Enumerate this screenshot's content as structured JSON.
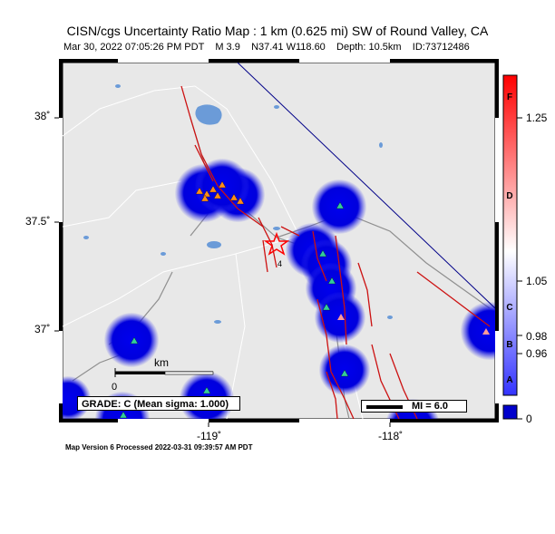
{
  "title": "CISN/cgs Uncertainty Ratio Map : 1 km (0.625 mi) SW of Round Valley, CA",
  "subtitle": "Mar 30, 2022 07:05:26 PM PDT    M 3.9    N37.41 W118.60    Depth: 10.5km    ID:73712486",
  "footer": "Map Version 6 Processed 2022-03-31 09:39:57 AM PDT",
  "axes": {
    "lat_ticks": [
      "38˚",
      "37.5˚",
      "37˚"
    ],
    "lon_ticks": [
      "-119˚",
      "-118˚"
    ]
  },
  "grade_label": "GRADE: C (Mean sigma: 1.000)",
  "mi_label": "MI = 6.0",
  "scale": {
    "unit": "km",
    "zero": "0"
  },
  "colorbar": {
    "value_labels": [
      "1.25",
      "1.05",
      "0.98",
      "0.96",
      "0"
    ],
    "grade_letters": [
      "F",
      "D",
      "C",
      "B",
      "A"
    ]
  },
  "colors": {
    "land": "#e8e8e8",
    "water": "#6b9bd8",
    "roads": "#8f8f8f",
    "faults": "#cc1111",
    "uncertainty": "#0000dd",
    "epicenter": "#ff0000",
    "station_orange": "#ff8c1a",
    "station_green": "#33cc99"
  }
}
